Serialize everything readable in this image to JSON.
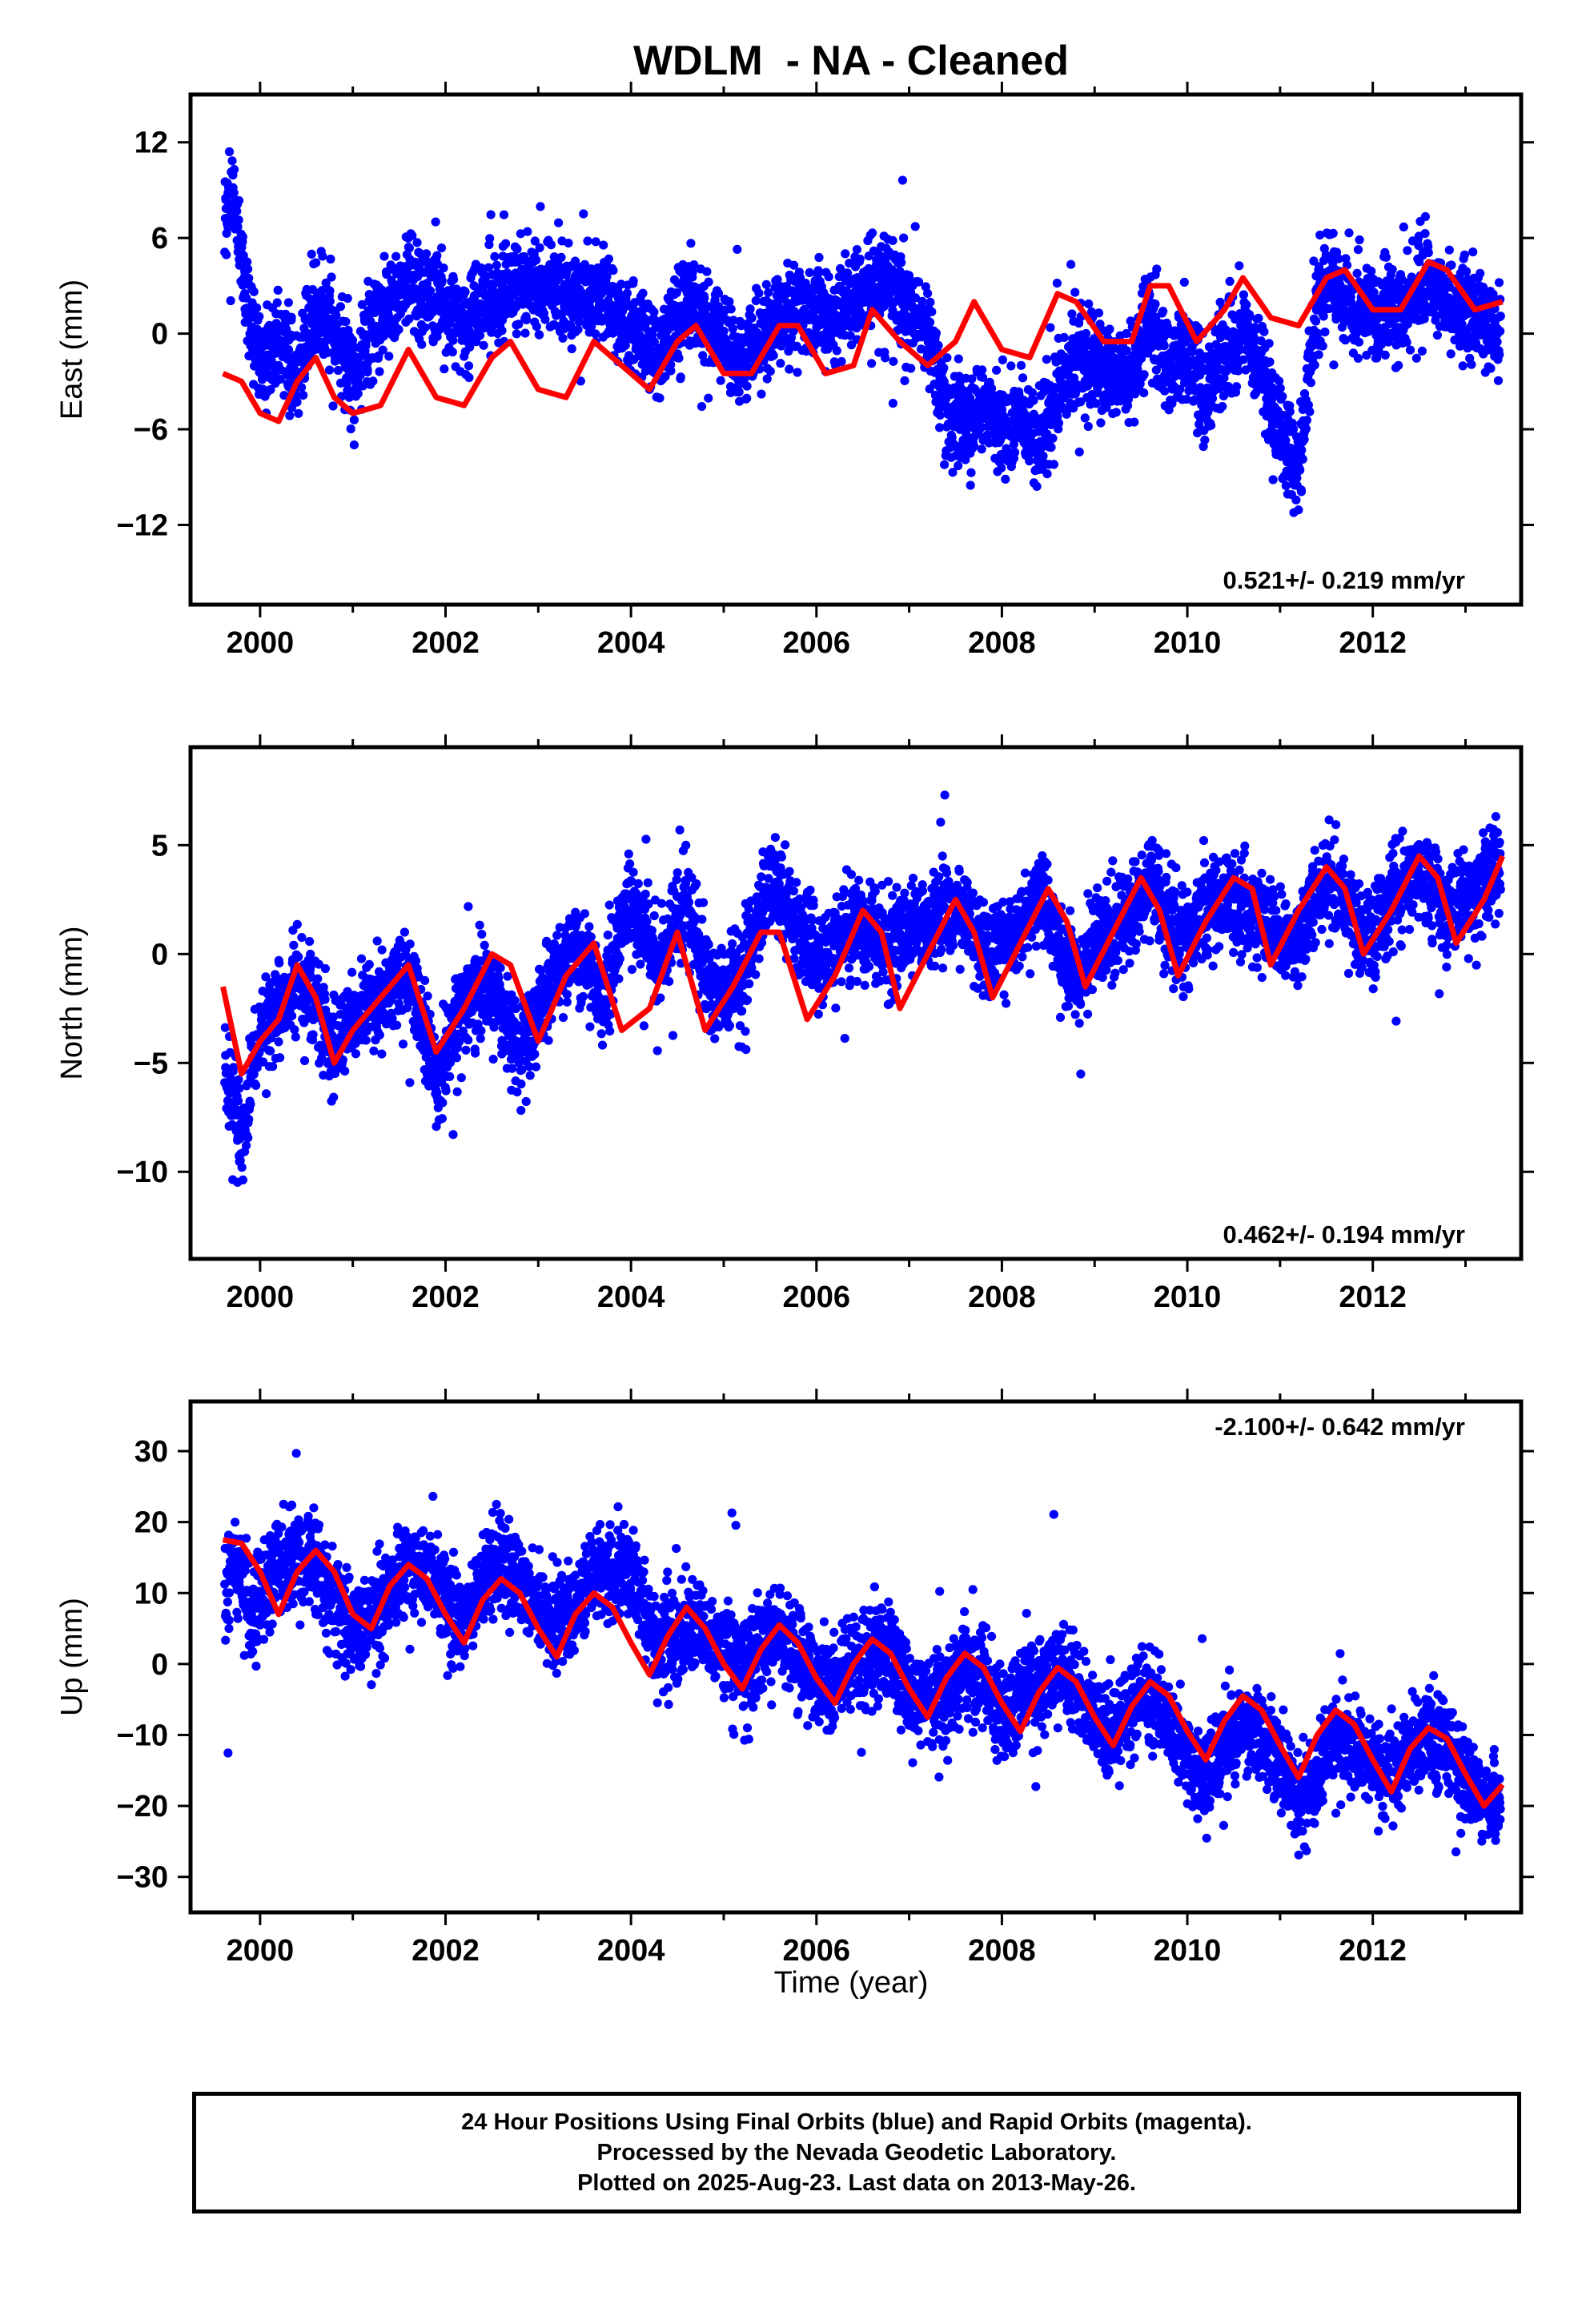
{
  "title": "WDLM  - NA - Cleaned",
  "xlabel": "Time (year)",
  "footer": {
    "line1": "24 Hour Positions Using Final Orbits (blue) and Rapid Orbits (magenta).",
    "line2": "Processed by the Nevada Geodetic Laboratory.",
    "line3": "Plotted on 2025-Aug-23. Last data on 2013-May-26."
  },
  "colors": {
    "points": "#0000ff",
    "model": "#ff0000",
    "frame": "#000000"
  },
  "chart_data": [
    {
      "type": "scatter",
      "ylabel": "East (mm)",
      "rate_label": "0.521+/- 0.219 mm/yr",
      "xlim": [
        1999.25,
        2013.6
      ],
      "ylim": [
        -17,
        15
      ],
      "xticks": [
        2000,
        2002,
        2004,
        2006,
        2008,
        2010,
        2012
      ],
      "yticks": [
        12,
        6,
        0,
        -6,
        -12
      ],
      "series": [
        {
          "kind": "observations",
          "x": [
            1999.62,
            1999.7,
            1999.8,
            1999.9,
            2000.0,
            2000.2,
            2000.4,
            2000.6,
            2000.8,
            2001.0,
            2001.3,
            2001.6,
            2001.9,
            2002.2,
            2002.5,
            2002.8,
            2003.1,
            2003.4,
            2003.7,
            2004.0,
            2004.3,
            2004.6,
            2004.9,
            2005.2,
            2005.5,
            2005.8,
            2006.1,
            2006.4,
            2006.7,
            2007.0,
            2007.2,
            2007.4,
            2007.6,
            2007.8,
            2008.0,
            2008.2,
            2008.4,
            2008.6,
            2008.8,
            2009.0,
            2009.2,
            2009.4,
            2009.6,
            2009.8,
            2010.0,
            2010.2,
            2010.4,
            2010.6,
            2010.8,
            2011.0,
            2011.2,
            2011.4,
            2011.6,
            2011.8,
            2012.0,
            2012.2,
            2012.4,
            2012.6,
            2012.8,
            2013.0,
            2013.2,
            2013.38
          ],
          "y": [
            7.0,
            9.0,
            4.5,
            1.0,
            -1.5,
            -0.5,
            -2.5,
            1.5,
            0.0,
            -2.5,
            1.0,
            3.5,
            2.0,
            0.5,
            2.5,
            3.0,
            3.0,
            2.0,
            2.5,
            0.5,
            -1.0,
            2.0,
            0.5,
            -1.5,
            0.5,
            2.0,
            1.0,
            2.0,
            3.5,
            2.0,
            0.0,
            -5.0,
            -6.0,
            -4.5,
            -6.0,
            -5.0,
            -7.0,
            -4.0,
            -1.5,
            -1.5,
            -3.0,
            -2.5,
            1.0,
            -2.5,
            -1.0,
            -3.5,
            -1.5,
            0.5,
            -2.5,
            -6.0,
            -9.0,
            2.5,
            3.0,
            1.5,
            1.5,
            1.5,
            2.0,
            4.0,
            2.0,
            1.0,
            0.5,
            0.5
          ]
        },
        {
          "kind": "model",
          "x": [
            1999.6,
            1999.8,
            2000.0,
            2000.2,
            2000.4,
            2000.6,
            2000.8,
            2001.0,
            2001.3,
            2001.6,
            2001.9,
            2002.2,
            2002.5,
            2002.7,
            2003.0,
            2003.3,
            2003.6,
            2003.9,
            2004.2,
            2004.5,
            2004.7,
            2005.0,
            2005.3,
            2005.6,
            2005.8,
            2006.1,
            2006.4,
            2006.6,
            2006.9,
            2007.2,
            2007.5,
            2007.7,
            2008.0,
            2008.3,
            2008.6,
            2008.8,
            2009.1,
            2009.4,
            2009.6,
            2009.8,
            2010.1,
            2010.4,
            2010.6,
            2010.9,
            2011.2,
            2011.5,
            2011.7,
            2012.0,
            2012.3,
            2012.6,
            2012.8,
            2013.1,
            2013.4
          ],
          "y": [
            -2.5,
            -3.0,
            -5.0,
            -5.5,
            -3.0,
            -1.5,
            -4.0,
            -5.0,
            -4.5,
            -1.0,
            -4.0,
            -4.5,
            -1.5,
            -0.5,
            -3.5,
            -4.0,
            -0.5,
            -2.0,
            -3.5,
            -0.5,
            0.5,
            -2.5,
            -2.5,
            0.5,
            0.5,
            -2.5,
            -2.0,
            1.5,
            -0.5,
            -2.0,
            -0.5,
            2.0,
            -1.0,
            -1.5,
            2.5,
            2.0,
            -0.5,
            -0.5,
            3.0,
            3.0,
            -0.5,
            1.5,
            3.5,
            1.0,
            0.5,
            3.5,
            4.0,
            1.5,
            1.5,
            4.5,
            4.0,
            1.5,
            2.0
          ]
        }
      ]
    },
    {
      "type": "scatter",
      "ylabel": "North (mm)",
      "rate_label": "0.462+/- 0.194 mm/yr",
      "xlim": [
        1999.25,
        2013.6
      ],
      "ylim": [
        -14,
        9.5
      ],
      "xticks": [
        2000,
        2002,
        2004,
        2006,
        2008,
        2010,
        2012
      ],
      "yticks": [
        5,
        0,
        -5,
        -10
      ],
      "series": [
        {
          "kind": "observations",
          "x": [
            1999.62,
            1999.7,
            1999.8,
            1999.9,
            2000.0,
            2000.2,
            2000.4,
            2000.6,
            2000.8,
            2001.0,
            2001.3,
            2001.6,
            2001.9,
            2002.2,
            2002.5,
            2002.8,
            2003.1,
            2003.4,
            2003.7,
            2004.0,
            2004.3,
            2004.6,
            2004.9,
            2005.2,
            2005.5,
            2005.8,
            2006.1,
            2006.4,
            2006.7,
            2007.0,
            2007.2,
            2007.4,
            2007.6,
            2007.8,
            2008.0,
            2008.2,
            2008.4,
            2008.6,
            2008.8,
            2009.0,
            2009.2,
            2009.4,
            2009.6,
            2009.8,
            2010.0,
            2010.2,
            2010.4,
            2010.6,
            2010.8,
            2011.0,
            2011.2,
            2011.4,
            2011.6,
            2011.8,
            2012.0,
            2012.2,
            2012.4,
            2012.6,
            2012.8,
            2013.0,
            2013.2,
            2013.38
          ],
          "y": [
            -5.5,
            -6.5,
            -8.5,
            -6.0,
            -3.5,
            -2.5,
            -1.0,
            -2.0,
            -4.5,
            -3.0,
            -2.0,
            -1.0,
            -6.0,
            -2.0,
            -1.5,
            -4.5,
            -1.5,
            0.5,
            -2.0,
            2.5,
            -1.0,
            2.5,
            -2.0,
            -1.0,
            3.5,
            1.0,
            0.0,
            1.5,
            0.5,
            1.0,
            1.0,
            2.0,
            2.0,
            0.0,
            0.5,
            1.0,
            3.0,
            0.5,
            -1.5,
            0.5,
            1.0,
            2.0,
            3.5,
            1.0,
            1.0,
            2.0,
            2.5,
            2.0,
            1.5,
            1.0,
            0.5,
            2.5,
            3.5,
            1.5,
            1.0,
            2.5,
            3.5,
            3.5,
            2.0,
            2.5,
            3.5,
            4.0
          ]
        },
        {
          "kind": "model",
          "x": [
            1999.6,
            1999.8,
            2000.0,
            2000.2,
            2000.4,
            2000.6,
            2000.8,
            2001.0,
            2001.3,
            2001.6,
            2001.9,
            2002.2,
            2002.5,
            2002.7,
            2003.0,
            2003.3,
            2003.6,
            2003.9,
            2004.2,
            2004.5,
            2004.8,
            2005.1,
            2005.4,
            2005.6,
            2005.9,
            2006.2,
            2006.5,
            2006.7,
            2006.9,
            2007.2,
            2007.5,
            2007.7,
            2007.9,
            2008.2,
            2008.5,
            2008.7,
            2008.9,
            2009.2,
            2009.5,
            2009.7,
            2009.9,
            2010.2,
            2010.5,
            2010.7,
            2010.9,
            2011.2,
            2011.5,
            2011.7,
            2011.9,
            2012.2,
            2012.5,
            2012.7,
            2012.9,
            2013.2,
            2013.4
          ],
          "y": [
            -1.5,
            -5.5,
            -4.0,
            -3.0,
            -0.5,
            -2.0,
            -5.0,
            -3.5,
            -2.0,
            -0.5,
            -4.5,
            -2.5,
            0.0,
            -0.5,
            -4.0,
            -1.0,
            0.5,
            -3.5,
            -2.5,
            1.0,
            -3.5,
            -1.5,
            1.0,
            1.0,
            -3.0,
            -1.0,
            2.0,
            1.0,
            -2.5,
            0.0,
            2.5,
            1.0,
            -2.0,
            0.5,
            3.0,
            1.5,
            -1.5,
            1.0,
            3.5,
            2.0,
            -1.0,
            1.5,
            3.5,
            3.0,
            -0.5,
            2.0,
            4.0,
            3.0,
            0.0,
            2.0,
            4.5,
            3.5,
            0.5,
            2.5,
            4.5
          ]
        }
      ]
    },
    {
      "type": "scatter",
      "ylabel": "Up (mm)",
      "rate_label": "-2.100+/- 0.642 mm/yr",
      "xlim": [
        1999.25,
        2013.6
      ],
      "ylim": [
        -35,
        37
      ],
      "xticks": [
        2000,
        2002,
        2004,
        2006,
        2008,
        2010,
        2012
      ],
      "yticks": [
        30,
        20,
        10,
        0,
        -10,
        -20,
        -30
      ],
      "series": [
        {
          "kind": "observations",
          "x": [
            1999.62,
            1999.7,
            1999.8,
            1999.9,
            2000.0,
            2000.2,
            2000.4,
            2000.6,
            2000.8,
            2001.0,
            2001.3,
            2001.6,
            2001.9,
            2002.2,
            2002.5,
            2002.8,
            2003.1,
            2003.4,
            2003.7,
            2004.0,
            2004.3,
            2004.6,
            2004.9,
            2005.2,
            2005.5,
            2005.8,
            2006.1,
            2006.4,
            2006.7,
            2007.0,
            2007.2,
            2007.4,
            2007.6,
            2007.8,
            2008.0,
            2008.2,
            2008.4,
            2008.6,
            2008.8,
            2009.0,
            2009.2,
            2009.4,
            2009.6,
            2009.8,
            2010.0,
            2010.2,
            2010.4,
            2010.6,
            2010.8,
            2011.0,
            2011.2,
            2011.4,
            2011.6,
            2011.8,
            2012.0,
            2012.2,
            2012.4,
            2012.6,
            2012.8,
            2013.0,
            2013.2,
            2013.38
          ],
          "y": [
            8.0,
            14.0,
            12.0,
            6.0,
            10.0,
            14.0,
            16.0,
            14.0,
            10.0,
            4.0,
            8.0,
            14.0,
            12.0,
            6.0,
            14.0,
            12.0,
            6.0,
            8.0,
            14.0,
            12.0,
            2.0,
            6.0,
            4.0,
            0.0,
            4.0,
            2.0,
            -4.0,
            0.0,
            2.0,
            -2.0,
            -6.0,
            -4.0,
            0.0,
            -2.0,
            -8.0,
            -4.0,
            -2.0,
            0.0,
            -4.0,
            -8.0,
            -10.0,
            -6.0,
            -4.0,
            -8.0,
            -12.0,
            -16.0,
            -12.0,
            -8.0,
            -10.0,
            -14.0,
            -20.0,
            -16.0,
            -10.0,
            -12.0,
            -14.0,
            -16.0,
            -12.0,
            -10.0,
            -12.0,
            -16.0,
            -18.0,
            -20.0
          ]
        },
        {
          "kind": "model",
          "x": [
            1999.6,
            1999.8,
            2000.0,
            2000.2,
            2000.4,
            2000.6,
            2000.8,
            2001.0,
            2001.2,
            2001.4,
            2001.6,
            2001.8,
            2002.0,
            2002.2,
            2002.4,
            2002.6,
            2002.8,
            2003.0,
            2003.2,
            2003.4,
            2003.6,
            2003.8,
            2004.0,
            2004.2,
            2004.4,
            2004.6,
            2004.8,
            2005.0,
            2005.2,
            2005.4,
            2005.6,
            2005.8,
            2006.0,
            2006.2,
            2006.4,
            2006.6,
            2006.8,
            2007.0,
            2007.2,
            2007.4,
            2007.6,
            2007.8,
            2008.0,
            2008.2,
            2008.4,
            2008.6,
            2008.8,
            2009.0,
            2009.2,
            2009.4,
            2009.6,
            2009.8,
            2010.0,
            2010.2,
            2010.4,
            2010.6,
            2010.8,
            2011.0,
            2011.2,
            2011.4,
            2011.6,
            2011.8,
            2012.0,
            2012.2,
            2012.4,
            2012.6,
            2012.8,
            2013.0,
            2013.2,
            2013.4
          ],
          "y": [
            17.5,
            17.0,
            13.0,
            7.0,
            13.0,
            16.0,
            13.0,
            7.0,
            5.0,
            11.0,
            14.0,
            12.0,
            7.0,
            3.0,
            9.0,
            12.0,
            10.0,
            5.0,
            1.0,
            7.0,
            10.0,
            8.0,
            3.0,
            -1.5,
            4.0,
            8.0,
            5.0,
            0.0,
            -3.5,
            2.0,
            5.5,
            3.0,
            -2.0,
            -5.5,
            0.0,
            3.5,
            1.5,
            -3.5,
            -7.5,
            -2.0,
            1.5,
            -0.5,
            -5.5,
            -9.5,
            -4.0,
            -0.5,
            -2.5,
            -7.5,
            -11.5,
            -6.0,
            -2.5,
            -4.5,
            -9.5,
            -13.5,
            -8.0,
            -4.5,
            -6.5,
            -11.5,
            -16.0,
            -10.0,
            -6.5,
            -8.5,
            -13.5,
            -18.0,
            -12.0,
            -9.0,
            -10.5,
            -15.5,
            -20.0,
            -17.0
          ]
        }
      ]
    }
  ]
}
